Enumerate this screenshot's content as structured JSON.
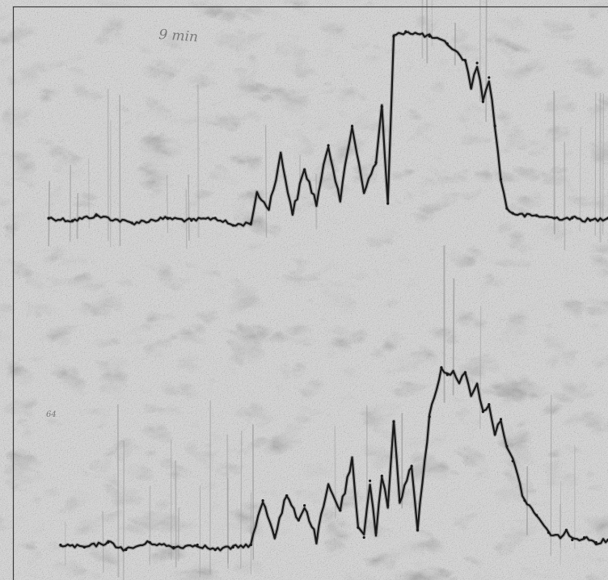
{
  "annotations": {
    "top_left_note": "9 min",
    "left_margin_mark": "64"
  },
  "colors": {
    "paper": "#d7d7d7",
    "speckle": "#9e9e9e",
    "ink": "#1a1a1a",
    "frame": "#3a3a3a"
  },
  "chart_data": [
    {
      "type": "line",
      "title": "",
      "xlabel": "",
      "ylabel": "",
      "grid": false,
      "xlim": [
        0,
        100
      ],
      "ylim": [
        0,
        100
      ],
      "series": [
        {
          "x": [
            6,
            10,
            14,
            20,
            26,
            30,
            34,
            37,
            40,
            41,
            43,
            45,
            47,
            49,
            51,
            53,
            55,
            57,
            59,
            61,
            62,
            63,
            64,
            66,
            70,
            73,
            76,
            77,
            78,
            79,
            80,
            81,
            82,
            83,
            84,
            86,
            88,
            91,
            94,
            97,
            100
          ],
          "y": [
            20,
            19,
            21,
            18,
            20,
            19,
            20,
            17,
            18,
            30,
            24,
            46,
            22,
            40,
            26,
            50,
            28,
            58,
            31,
            43,
            66,
            26,
            95,
            97,
            95,
            92,
            85,
            74,
            84,
            68,
            78,
            58,
            36,
            24,
            22,
            21,
            21,
            20,
            20,
            19,
            20
          ]
        }
      ]
    },
    {
      "type": "line",
      "title": "",
      "xlabel": "",
      "ylabel": "",
      "grid": false,
      "xlim": [
        0,
        100
      ],
      "ylim": [
        0,
        100
      ],
      "series": [
        {
          "x": [
            8,
            12,
            16,
            19,
            23,
            27,
            31,
            34,
            37,
            40,
            42,
            44,
            46,
            48,
            49,
            51,
            53,
            55,
            57,
            58,
            59,
            60,
            61,
            62,
            63,
            64,
            65,
            67,
            68,
            70,
            72,
            73,
            74,
            75,
            76,
            77,
            78,
            79,
            80,
            81,
            82,
            83,
            84,
            86,
            88,
            90,
            92,
            93,
            94,
            96,
            98,
            100
          ],
          "y": [
            10,
            9,
            11,
            8,
            11,
            9,
            10,
            8,
            9,
            10,
            28,
            14,
            30,
            20,
            26,
            12,
            34,
            24,
            44,
            17,
            13,
            36,
            15,
            38,
            26,
            60,
            28,
            42,
            16,
            62,
            82,
            79,
            80,
            76,
            80,
            71,
            75,
            64,
            67,
            55,
            61,
            50,
            44,
            28,
            22,
            15,
            13,
            16,
            12,
            13,
            11,
            12
          ]
        }
      ]
    }
  ]
}
